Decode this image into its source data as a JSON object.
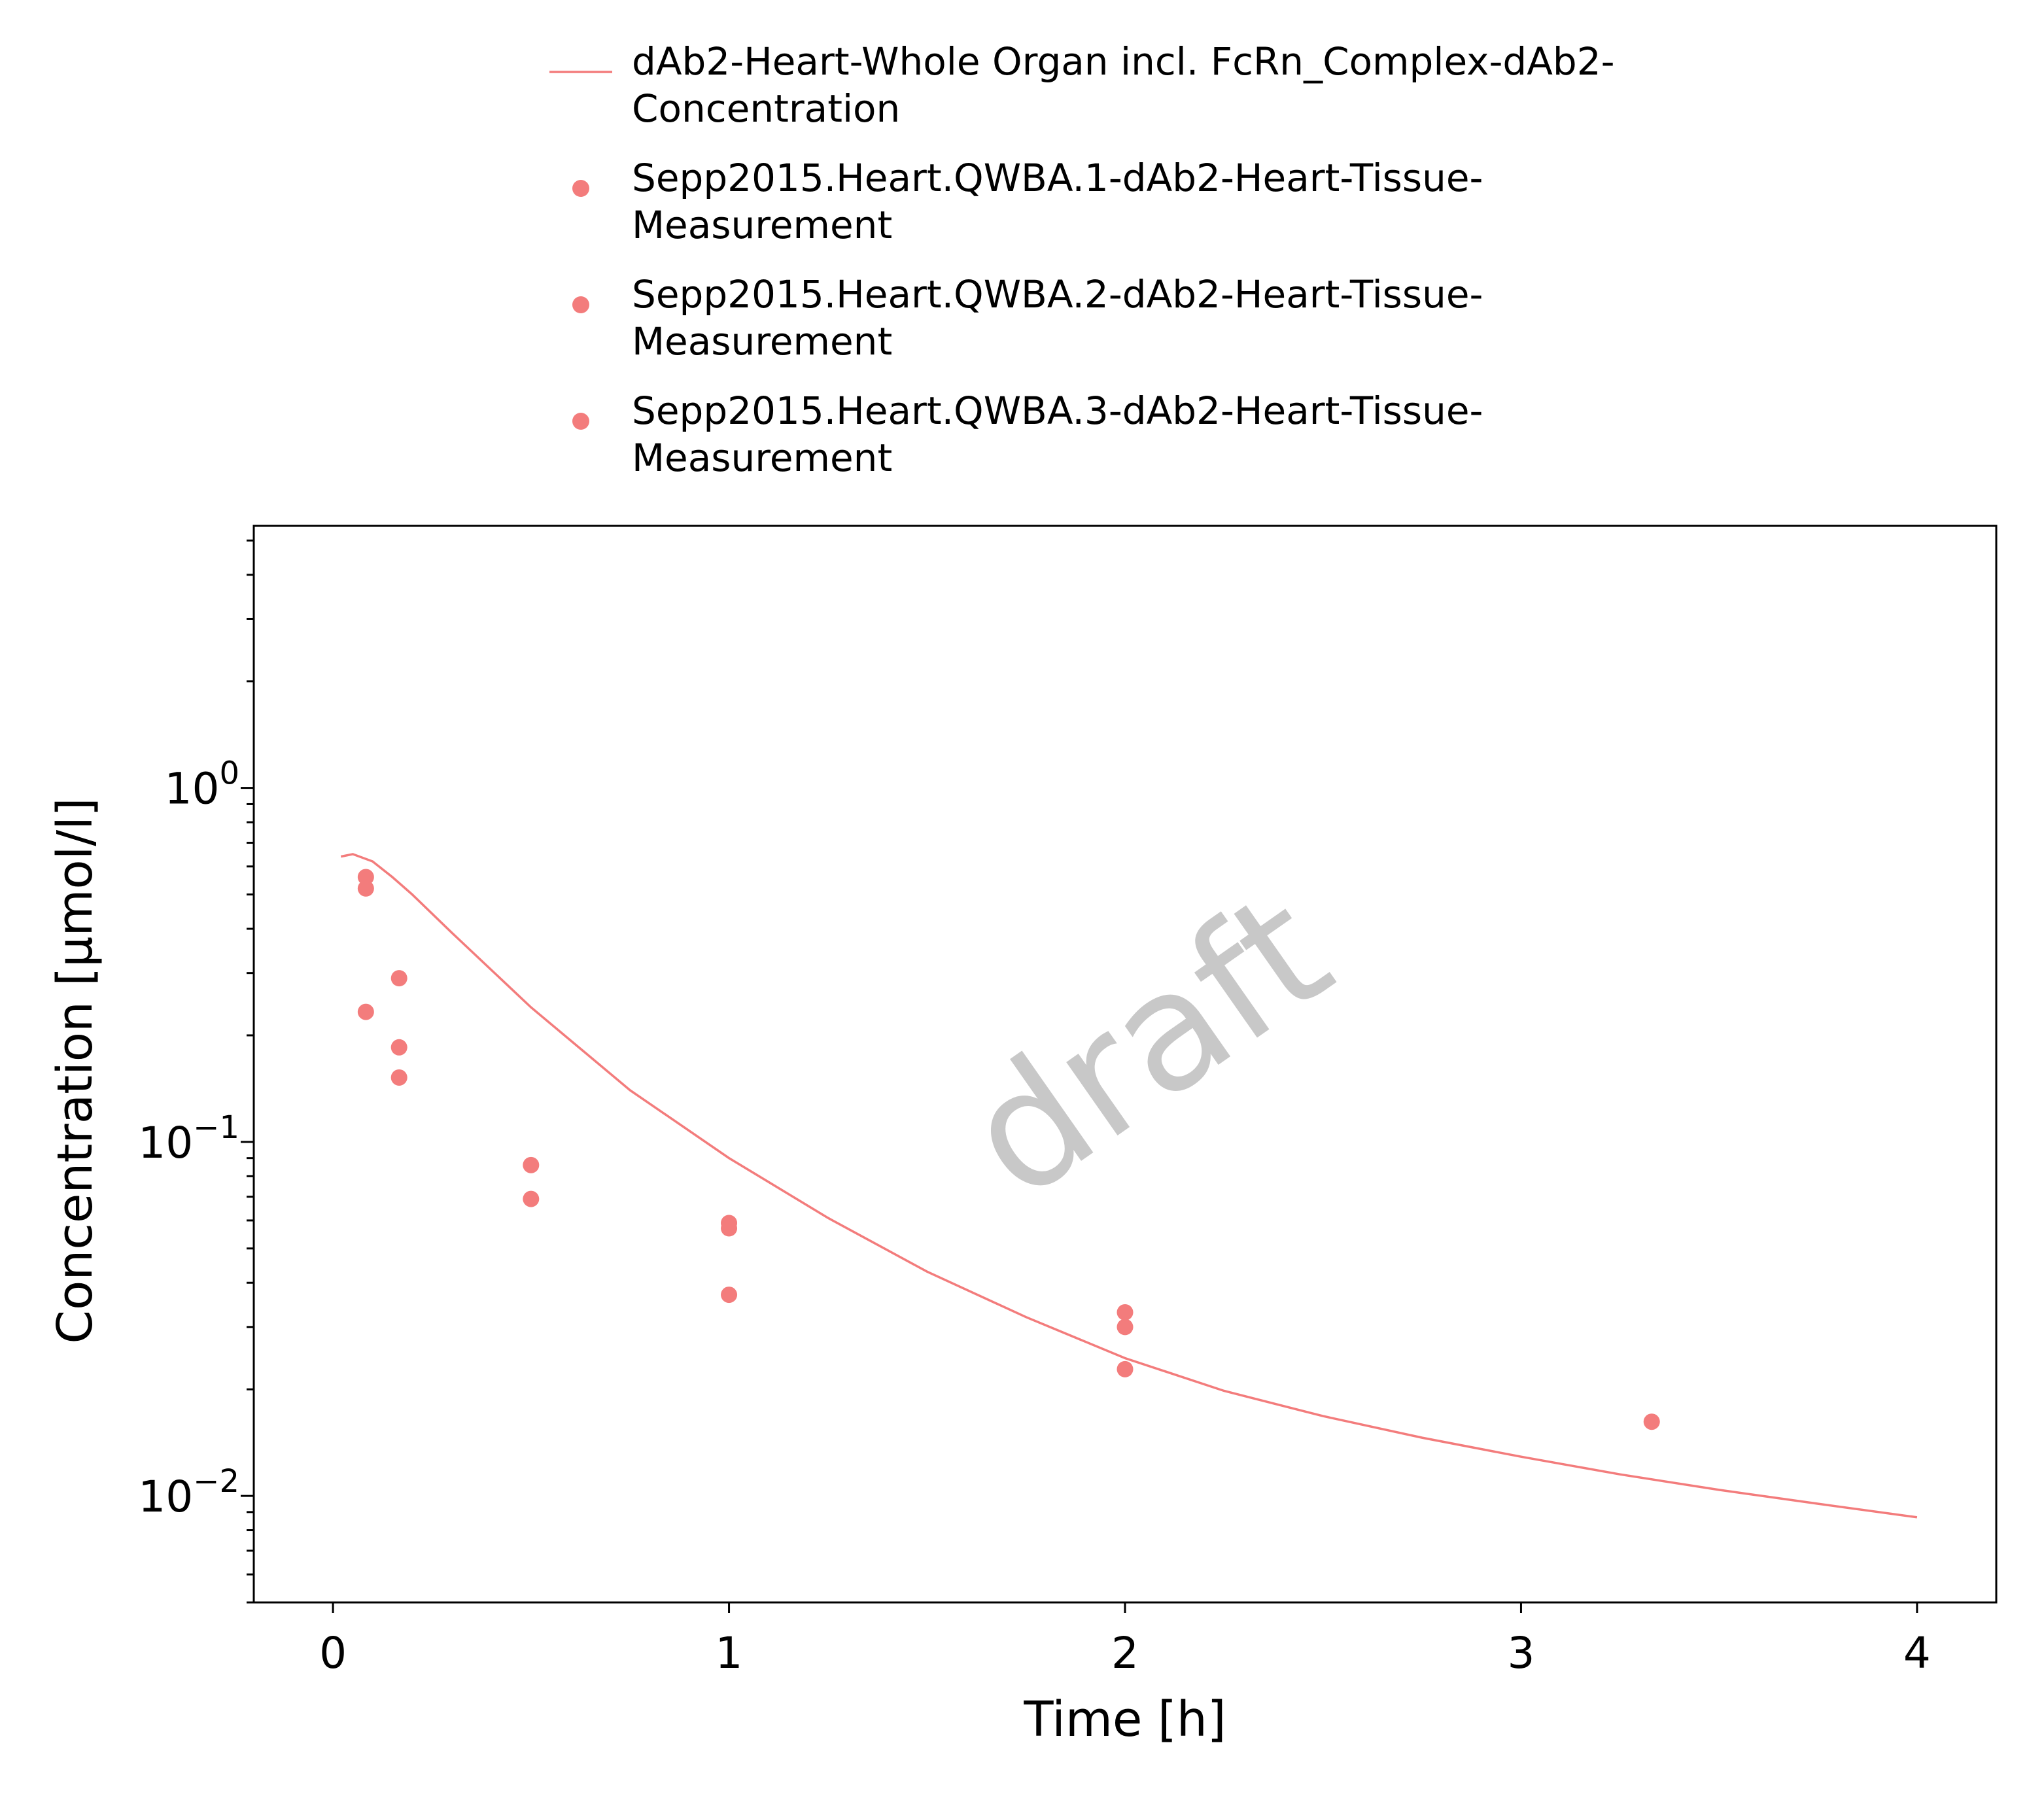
{
  "chart_data": {
    "type": "scatter",
    "title": "",
    "xlabel": "Time [h]",
    "ylabel": "Concentration [µmol/l]",
    "xlim": [
      -0.2,
      4.2
    ],
    "ylim": [
      0.005,
      5.5
    ],
    "yscale": "log",
    "x_ticks": [
      0,
      1,
      2,
      3,
      4
    ],
    "x_tick_labels": [
      "0",
      "1",
      "2",
      "3",
      "4"
    ],
    "y_ticks": [
      {
        "value": 1,
        "base": "10",
        "exp": "0"
      },
      {
        "value": 0.1,
        "base": "10",
        "exp": "−1"
      },
      {
        "value": 0.01,
        "base": "10",
        "exp": "−2"
      }
    ],
    "grid": false,
    "legend_position": "top",
    "watermark": "draft",
    "colors": {
      "series": "#f37c7c",
      "text": "#000000",
      "watermark": "#c8c8c8"
    },
    "series": [
      {
        "name": "dAb2-Heart-Whole Organ incl. FcRn_Complex-dAb2-Concentration",
        "legend_lines": [
          "dAb2-Heart-Whole Organ incl. FcRn_Complex-dAb2-",
          "Concentration"
        ],
        "kind": "line",
        "x": [
          0.02,
          0.05,
          0.1,
          0.15,
          0.2,
          0.3,
          0.5,
          0.75,
          1.0,
          1.25,
          1.5,
          1.75,
          2.0,
          2.25,
          2.5,
          2.75,
          3.0,
          3.25,
          3.5,
          3.75,
          4.0
        ],
        "y": [
          0.64,
          0.65,
          0.62,
          0.56,
          0.5,
          0.39,
          0.24,
          0.14,
          0.09,
          0.061,
          0.043,
          0.032,
          0.0245,
          0.0198,
          0.0168,
          0.0146,
          0.0129,
          0.0115,
          0.0104,
          0.0095,
          0.0087
        ]
      },
      {
        "name": "Sepp2015.Heart.QWBA.1-dAb2-Heart-Tissue-Measurement",
        "legend_lines": [
          "Sepp2015.Heart.QWBA.1-dAb2-Heart-Tissue-",
          "Measurement"
        ],
        "kind": "scatter",
        "x": [
          0.083,
          0.167,
          0.5,
          1.0,
          2.0
        ],
        "y": [
          0.56,
          0.29,
          0.086,
          0.059,
          0.033
        ]
      },
      {
        "name": "Sepp2015.Heart.QWBA.2-dAb2-Heart-Tissue-Measurement",
        "legend_lines": [
          "Sepp2015.Heart.QWBA.2-dAb2-Heart-Tissue-",
          "Measurement"
        ],
        "kind": "scatter",
        "x": [
          0.083,
          0.167,
          0.5,
          1.0,
          2.0,
          3.33
        ],
        "y": [
          0.52,
          0.185,
          0.069,
          0.057,
          0.03,
          0.0162
        ]
      },
      {
        "name": "Sepp2015.Heart.QWBA.3-dAb2-Heart-Tissue-Measurement",
        "legend_lines": [
          "Sepp2015.Heart.QWBA.3-dAb2-Heart-Tissue-",
          "Measurement"
        ],
        "kind": "scatter",
        "x": [
          0.083,
          0.167,
          1.0,
          2.0
        ],
        "y": [
          0.233,
          0.152,
          0.037,
          0.0228
        ]
      }
    ]
  }
}
